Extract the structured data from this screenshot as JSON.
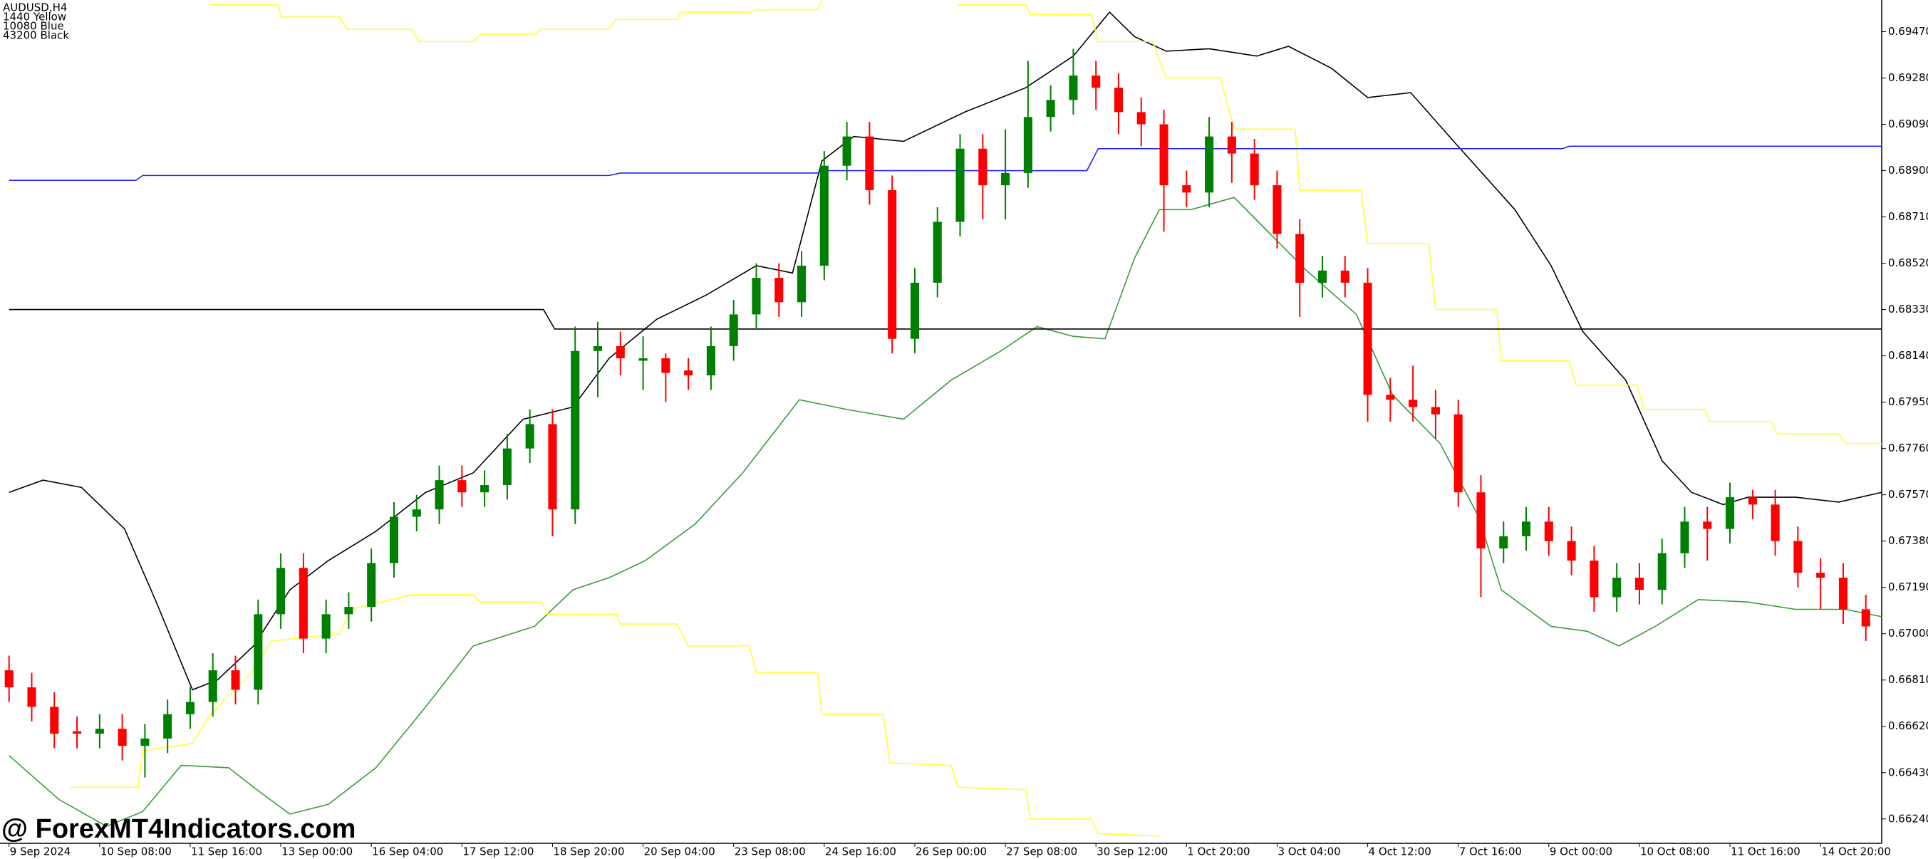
{
  "chart_data": {
    "type": "candlestick",
    "symbol_lines": [
      "AUDUSD,H4",
      "1440 Yellow",
      "10080 Blue",
      "43200 Black"
    ],
    "watermark": "@ ForexMT4Indicators.com",
    "up_color": "#008000",
    "down_color": "#ff0000",
    "x": [
      0,
      1,
      2,
      3,
      4,
      5,
      6,
      7,
      8,
      9,
      10,
      11,
      12,
      13,
      14,
      15,
      16,
      17,
      18,
      19,
      20,
      21,
      22,
      23,
      24,
      25,
      26,
      27,
      28,
      29,
      30,
      31,
      32,
      33,
      34,
      35,
      36,
      37,
      38,
      39,
      40,
      41,
      42,
      43,
      44,
      45,
      46,
      47,
      48,
      49,
      50,
      51,
      52,
      53,
      54,
      55,
      56,
      57,
      58,
      59,
      60,
      61,
      62,
      63,
      64,
      65,
      66,
      67,
      68,
      69,
      70,
      71,
      72,
      73,
      74,
      75,
      76,
      77,
      78,
      79,
      80,
      81,
      82
    ],
    "open": [
      0.6685,
      0.6678,
      0.667,
      0.666,
      0.6659,
      0.6661,
      0.6654,
      0.6657,
      0.6667,
      0.6672,
      0.6685,
      0.6677,
      0.6708,
      0.6727,
      0.6698,
      0.6708,
      0.6711,
      0.6729,
      0.6748,
      0.6751,
      0.6763,
      0.6758,
      0.6761,
      0.6776,
      0.6786,
      0.6751,
      0.6816,
      0.6818,
      0.6812,
      0.6813,
      0.6808,
      0.6806,
      0.6818,
      0.6831,
      0.6846,
      0.6836,
      0.6851,
      0.6892,
      0.6904,
      0.6882,
      0.6821,
      0.6844,
      0.6869,
      0.6899,
      0.6884,
      0.6889,
      0.6912,
      0.6919,
      0.6929,
      0.6924,
      0.6914,
      0.6909,
      0.6884,
      0.6881,
      0.6904,
      0.6897,
      0.6884,
      0.6864,
      0.6844,
      0.6849,
      0.6844,
      0.6798,
      0.6796,
      0.6793,
      0.679,
      0.6758,
      0.6735,
      0.674,
      0.6746,
      0.6738,
      0.673,
      0.6715,
      0.6723,
      0.6718,
      0.6733,
      0.6746,
      0.6743,
      0.6756,
      0.6753,
      0.6738,
      0.6725,
      0.6723,
      0.671
    ],
    "high": [
      0.6691,
      0.6684,
      0.6676,
      0.6666,
      0.6667,
      0.6667,
      0.6663,
      0.6673,
      0.6678,
      0.6692,
      0.6691,
      0.6714,
      0.6733,
      0.6733,
      0.6714,
      0.6717,
      0.6735,
      0.6754,
      0.6757,
      0.6769,
      0.6769,
      0.6767,
      0.6782,
      0.6792,
      0.6792,
      0.6826,
      0.6828,
      0.6824,
      0.6822,
      0.6815,
      0.6813,
      0.6826,
      0.6837,
      0.6852,
      0.6852,
      0.6857,
      0.6898,
      0.691,
      0.691,
      0.6888,
      0.685,
      0.6875,
      0.6905,
      0.6905,
      0.6907,
      0.6935,
      0.6925,
      0.694,
      0.6935,
      0.693,
      0.692,
      0.6915,
      0.689,
      0.6912,
      0.691,
      0.6903,
      0.689,
      0.687,
      0.6855,
      0.6855,
      0.685,
      0.6805,
      0.681,
      0.68,
      0.6796,
      0.6765,
      0.6746,
      0.6752,
      0.6752,
      0.6744,
      0.6736,
      0.6729,
      0.6729,
      0.6739,
      0.6752,
      0.6752,
      0.6762,
      0.6759,
      0.6759,
      0.6744,
      0.6731,
      0.6729,
      0.6716
    ],
    "low": [
      0.6672,
      0.6664,
      0.6653,
      0.6653,
      0.6653,
      0.6648,
      0.6641,
      0.6651,
      0.6661,
      0.6666,
      0.6671,
      0.6671,
      0.6702,
      0.6692,
      0.6692,
      0.6702,
      0.6705,
      0.6723,
      0.6742,
      0.6745,
      0.6752,
      0.6752,
      0.6755,
      0.677,
      0.674,
      0.6745,
      0.6797,
      0.6806,
      0.68,
      0.6795,
      0.68,
      0.68,
      0.6812,
      0.6825,
      0.683,
      0.683,
      0.6845,
      0.6886,
      0.6876,
      0.6815,
      0.6815,
      0.6838,
      0.6863,
      0.687,
      0.687,
      0.6883,
      0.6906,
      0.6913,
      0.6915,
      0.6905,
      0.69,
      0.6865,
      0.6875,
      0.6875,
      0.6885,
      0.6878,
      0.6858,
      0.683,
      0.6838,
      0.6838,
      0.6787,
      0.6787,
      0.6787,
      0.678,
      0.6752,
      0.6715,
      0.6729,
      0.6734,
      0.6732,
      0.6724,
      0.6709,
      0.6709,
      0.6712,
      0.6712,
      0.6727,
      0.673,
      0.6737,
      0.6747,
      0.6732,
      0.6719,
      0.671,
      0.6704,
      0.6697
    ],
    "close": [
      0.6678,
      0.667,
      0.6659,
      0.6659,
      0.6661,
      0.6654,
      0.6657,
      0.6667,
      0.6672,
      0.6685,
      0.6677,
      0.6708,
      0.6727,
      0.6698,
      0.6708,
      0.6711,
      0.6729,
      0.6748,
      0.6751,
      0.6763,
      0.6758,
      0.6761,
      0.6776,
      0.6786,
      0.6751,
      0.6816,
      0.6818,
      0.6813,
      0.6813,
      0.6807,
      0.6806,
      0.6818,
      0.6831,
      0.6846,
      0.6836,
      0.6851,
      0.6892,
      0.6904,
      0.6882,
      0.6821,
      0.6844,
      0.6869,
      0.6899,
      0.6884,
      0.6889,
      0.6912,
      0.6919,
      0.6929,
      0.6924,
      0.6914,
      0.6909,
      0.6884,
      0.6881,
      0.6904,
      0.6897,
      0.6884,
      0.6864,
      0.6844,
      0.6849,
      0.6844,
      0.6798,
      0.6796,
      0.6793,
      0.679,
      0.6758,
      0.6735,
      0.674,
      0.6746,
      0.6738,
      0.673,
      0.6715,
      0.6723,
      0.6718,
      0.6733,
      0.6746,
      0.6743,
      0.6756,
      0.6753,
      0.6738,
      0.6725,
      0.6723,
      0.671,
      0.6703
    ],
    "overlays": [
      {
        "color": "#000000",
        "x": [
          0,
          1.5,
          3.2,
          5.1,
          6.5,
          8.1,
          9.2,
          10.8,
          12.4,
          14.1,
          16.2,
          18.4,
          20.5,
          22.7,
          24.9,
          26.5,
          28.6,
          30.8,
          33,
          34.6,
          35.9,
          37.3,
          39.5,
          42.2,
          44.9,
          47,
          48.6,
          49.7,
          51.1,
          53,
          55.1,
          56.5,
          58.4,
          60,
          61.9,
          63.8,
          66.5,
          68.1,
          69.5,
          71.4,
          73,
          74.3,
          75.7,
          76.8,
          78.9,
          80.8,
          82.7
        ],
        "values": [
          0.6758,
          0.6763,
          0.676,
          0.6743,
          0.6713,
          0.6677,
          0.6681,
          0.6695,
          0.6718,
          0.673,
          0.6742,
          0.6758,
          0.6766,
          0.6788,
          0.6793,
          0.6813,
          0.6829,
          0.6839,
          0.6851,
          0.6848,
          0.6894,
          0.6904,
          0.6902,
          0.6914,
          0.6924,
          0.6937,
          0.6955,
          0.6945,
          0.6939,
          0.694,
          0.6937,
          0.6941,
          0.6932,
          0.692,
          0.6922,
          0.6902,
          0.6874,
          0.6851,
          0.6824,
          0.6804,
          0.6771,
          0.6758,
          0.6753,
          0.6756,
          0.6756,
          0.6754,
          0.6758
        ]
      },
      {
        "color": "#3c9a3c",
        "x": [
          0,
          2.2,
          4.3,
          5.9,
          7.6,
          9.7,
          10.8,
          12.4,
          14.1,
          16.2,
          18.4,
          20.5,
          23.2,
          24.9,
          26.5,
          28.1,
          30.3,
          32.4,
          34.9,
          37,
          39.5,
          41.6,
          43.8,
          45.4,
          47,
          48.4,
          49.7,
          50.8,
          52.2,
          54.1,
          55.7,
          57.3,
          59.5,
          61.1,
          63.2,
          64.9,
          65.9,
          68.1,
          69.7,
          71.1,
          72.7,
          74.6,
          76.8,
          78.9,
          81.1,
          82.7
        ],
        "values": [
          0.665,
          0.6632,
          0.6621,
          0.6627,
          0.6646,
          0.6645,
          0.6637,
          0.6626,
          0.663,
          0.6645,
          0.667,
          0.6695,
          0.6703,
          0.6718,
          0.6723,
          0.673,
          0.6745,
          0.6766,
          0.6796,
          0.6792,
          0.6788,
          0.6804,
          0.6816,
          0.6826,
          0.6822,
          0.6821,
          0.6854,
          0.6874,
          0.6874,
          0.6879,
          0.6864,
          0.6849,
          0.6831,
          0.6798,
          0.6778,
          0.6748,
          0.6718,
          0.6703,
          0.6701,
          0.6695,
          0.6703,
          0.6714,
          0.6713,
          0.671,
          0.671,
          0.6707
        ]
      },
      {
        "color": "#ffff33",
        "x": [
          8.9,
          11.9,
          12.0,
          14.6,
          14.9,
          17.8,
          18.1,
          20.5,
          20.8,
          23.2,
          23.5,
          26.5,
          26.8,
          29.5,
          29.7,
          32.7,
          33.0,
          35.7,
          35.9,
          38,
          41.9,
          44.9,
          45.1,
          47.8,
          48.1,
          50.5,
          51.1,
          53.5,
          54.1,
          56.8,
          57.0,
          59.7,
          60.0,
          62.7,
          63.0,
          65.7,
          65.9,
          68.9,
          69.2,
          71.9,
          72.2,
          74.9,
          75.1,
          77.8,
          78.1,
          80.8,
          81.1,
          82.7
        ],
        "values": [
          0.6958,
          0.6958,
          0.6953,
          0.6953,
          0.6948,
          0.6948,
          0.6943,
          0.6943,
          0.6946,
          0.6946,
          0.6948,
          0.6948,
          0.6952,
          0.6952,
          0.6955,
          0.6955,
          0.6956,
          0.6956,
          0.696,
          null,
          0.6958,
          0.6958,
          0.6954,
          0.6954,
          0.6943,
          0.6943,
          0.6928,
          0.6928,
          0.6907,
          0.6907,
          0.6882,
          0.6882,
          0.686,
          0.686,
          0.6833,
          0.6833,
          0.6812,
          0.6812,
          0.6802,
          0.6802,
          0.6792,
          0.6792,
          0.6787,
          0.6787,
          0.6782,
          0.6782,
          0.6778,
          0.6778
        ]
      },
      {
        "color": "#ffff33",
        "x": [
          2.7,
          5.7,
          5.9,
          8.1,
          8.9,
          10.8,
          11.6,
          14.6,
          15.1,
          17.8,
          20.5,
          20.8,
          23.5,
          23.8,
          26.8,
          27.0,
          29.5,
          30.0,
          32.7,
          33.0,
          35.7,
          35.9,
          38.6,
          38.9,
          41.6,
          41.9,
          44.9,
          45.1,
          47.8,
          48.1,
          50.8
        ],
        "values": [
          0.6637,
          0.6637,
          0.6652,
          0.6655,
          0.6667,
          0.6685,
          0.6697,
          0.67,
          0.671,
          0.6716,
          0.6716,
          0.6713,
          0.6713,
          0.6708,
          0.6708,
          0.6704,
          0.6704,
          0.6695,
          0.6695,
          0.6684,
          0.6684,
          0.6667,
          0.6667,
          0.6647,
          0.6646,
          0.6637,
          0.6636,
          0.6624,
          0.6624,
          0.6618,
          0.6617
        ]
      },
      {
        "color": "#2020ff",
        "x": [
          0,
          5.6,
          5.9,
          26.5,
          27,
          35.7,
          35.9,
          47.6,
          48.1,
          68.6,
          68.9,
          82.7
        ],
        "values": [
          0.6886,
          0.6886,
          0.6888,
          0.6888,
          0.6889,
          0.6889,
          0.689,
          0.689,
          0.6899,
          0.6899,
          0.69,
          0.69
        ]
      },
      {
        "color": "#000000",
        "x": [
          0,
          23.6,
          24.1,
          82.7
        ],
        "values": [
          0.6833,
          0.6833,
          0.6825,
          0.6825
        ]
      }
    ],
    "xlim": [
      -0.4,
      82.7
    ],
    "xticks": [
      {
        "value": 0,
        "label": "9 Sep 2024"
      },
      {
        "value": 4,
        "label": "10 Sep 08:00"
      },
      {
        "value": 8,
        "label": "11 Sep 16:00"
      },
      {
        "value": 12,
        "label": "13 Sep 00:00"
      },
      {
        "value": 16,
        "label": "16 Sep 04:00"
      },
      {
        "value": 20,
        "label": "17 Sep 12:00"
      },
      {
        "value": 24,
        "label": "18 Sep 20:00"
      },
      {
        "value": 28,
        "label": "20 Sep 04:00"
      },
      {
        "value": 32,
        "label": "23 Sep 08:00"
      },
      {
        "value": 36,
        "label": "24 Sep 16:00"
      },
      {
        "value": 40,
        "label": "26 Sep 00:00"
      },
      {
        "value": 44,
        "label": "27 Sep 08:00"
      },
      {
        "value": 48,
        "label": "30 Sep 12:00"
      },
      {
        "value": 52,
        "label": "1 Oct 20:00"
      },
      {
        "value": 56,
        "label": "3 Oct 04:00"
      },
      {
        "value": 60,
        "label": "4 Oct 12:00"
      },
      {
        "value": 64,
        "label": "7 Oct 16:00"
      },
      {
        "value": 68,
        "label": "9 Oct 00:00"
      },
      {
        "value": 72,
        "label": "10 Oct 08:00"
      },
      {
        "value": 76,
        "label": "11 Oct 16:00"
      },
      {
        "value": 80,
        "label": "14 Oct 20:00"
      }
    ],
    "ylim": [
      0.6614,
      0.696
    ],
    "yticks": [
      {
        "value": 0.6947,
        "label": "0.69470"
      },
      {
        "value": 0.6928,
        "label": "0.69280"
      },
      {
        "value": 0.6909,
        "label": "0.69090"
      },
      {
        "value": 0.689,
        "label": "0.68900"
      },
      {
        "value": 0.6871,
        "label": "0.68710"
      },
      {
        "value": 0.6852,
        "label": "0.68520"
      },
      {
        "value": 0.6833,
        "label": "0.68330"
      },
      {
        "value": 0.6814,
        "label": "0.68140"
      },
      {
        "value": 0.6795,
        "label": "0.67950"
      },
      {
        "value": 0.6776,
        "label": "0.67760"
      },
      {
        "value": 0.6757,
        "label": "0.67570"
      },
      {
        "value": 0.6738,
        "label": "0.67380"
      },
      {
        "value": 0.6719,
        "label": "0.67190"
      },
      {
        "value": 0.67,
        "label": "0.67000"
      },
      {
        "value": 0.6681,
        "label": "0.66810"
      },
      {
        "value": 0.6662,
        "label": "0.66620"
      },
      {
        "value": 0.6643,
        "label": "0.66430"
      },
      {
        "value": 0.6624,
        "label": "0.66240"
      }
    ]
  }
}
